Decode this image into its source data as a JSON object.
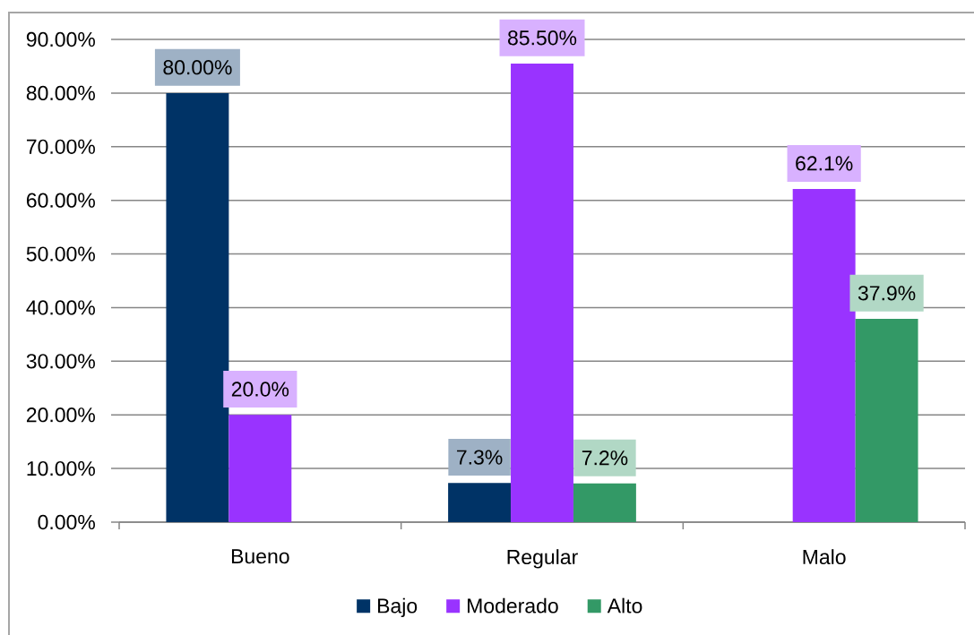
{
  "chart_data": {
    "type": "bar",
    "categories": [
      "Bueno",
      "Regular",
      "Malo"
    ],
    "series": [
      {
        "name": "Bajo",
        "color": "#003366",
        "values": [
          80.0,
          7.3,
          null
        ],
        "value_labels": [
          "80.00%",
          "7.3%",
          null
        ]
      },
      {
        "name": "Moderado",
        "color": "#9933ff",
        "values": [
          20.0,
          85.5,
          62.1
        ],
        "value_labels": [
          "20.0%",
          "85.50%",
          "62.1%"
        ]
      },
      {
        "name": "Alto",
        "color": "#339966",
        "values": [
          null,
          7.2,
          37.9
        ],
        "value_labels": [
          null,
          "7.2%",
          "37.9%"
        ]
      }
    ],
    "ylim": [
      0,
      90
    ],
    "yticks": [
      {
        "value": 0,
        "label": "0.00%"
      },
      {
        "value": 10,
        "label": "10.00%"
      },
      {
        "value": 20,
        "label": "20.00%"
      },
      {
        "value": 30,
        "label": "30.00%"
      },
      {
        "value": 40,
        "label": "40.00%"
      },
      {
        "value": 50,
        "label": "50.00%"
      },
      {
        "value": 60,
        "label": "60.00%"
      },
      {
        "value": 70,
        "label": "70.00%"
      },
      {
        "value": 80,
        "label": "80.00%"
      },
      {
        "value": 90,
        "label": "90.00%"
      }
    ],
    "grid": "y",
    "legend": "bottom"
  }
}
